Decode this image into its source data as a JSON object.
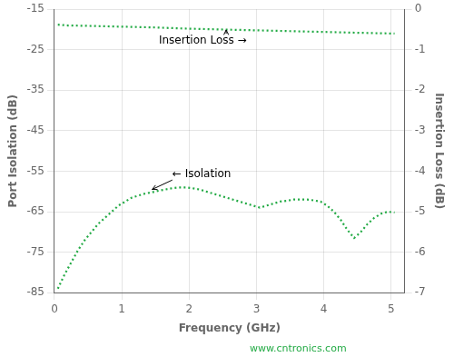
{
  "chart_data": {
    "type": "line",
    "xlabel": "Frequency (GHz)",
    "ylabel": "Port Isolation (dB)",
    "y2label": "Insertion Loss (dB)",
    "series": [
      {
        "x": [
          0.05,
          0.15,
          0.25,
          0.35,
          0.45,
          0.55,
          0.65,
          0.75,
          0.85,
          0.95,
          1.05,
          1.15,
          1.25,
          1.35,
          1.45,
          1.55,
          1.65,
          1.75,
          1.85,
          1.95,
          2.05,
          2.15,
          2.25,
          2.35,
          2.45,
          2.55,
          2.65,
          2.75,
          2.85,
          2.95,
          3.05,
          3.15,
          3.25,
          3.35,
          3.45,
          3.55,
          3.65,
          3.75,
          3.85,
          3.95,
          4.05,
          4.15,
          4.25,
          4.35,
          4.45,
          4.55,
          4.65,
          4.75,
          4.85,
          4.95,
          5.05
        ],
        "values": [
          -84.0,
          -80.5,
          -77.5,
          -74.5,
          -72.0,
          -70.0,
          -68.0,
          -66.5,
          -65.0,
          -63.5,
          -62.5,
          -61.5,
          -61.0,
          -60.5,
          -60.2,
          -59.8,
          -59.5,
          -59.2,
          -59.0,
          -59.0,
          -59.2,
          -59.5,
          -60.0,
          -60.5,
          -61.0,
          -61.5,
          -62.0,
          -62.5,
          -63.0,
          -63.5,
          -64.0,
          -63.5,
          -63.0,
          -62.5,
          -62.3,
          -62.0,
          -62.0,
          -62.0,
          -62.2,
          -62.5,
          -63.5,
          -65.0,
          -67.0,
          -69.5,
          -71.5,
          -70.0,
          -68.0,
          -66.5,
          -65.5,
          -65.0,
          -65.2
        ],
        "color": "#22aa44",
        "line_style": "dotted"
      },
      {
        "x": [
          0.05,
          0.2,
          0.5,
          1.0,
          1.5,
          2.0,
          2.5,
          3.0,
          3.5,
          4.0,
          4.5,
          5.05
        ],
        "values": [
          -18.8,
          -19.0,
          -19.1,
          -19.3,
          -19.5,
          -19.8,
          -20.0,
          -20.2,
          -20.4,
          -20.6,
          -20.8,
          -21.0
        ],
        "color": "#22aa44",
        "line_style": "dotted"
      }
    ],
    "xlim": [
      0.0,
      5.2
    ],
    "xticks": [
      0.0,
      1.0,
      2.0,
      3.0,
      4.0,
      5.0
    ],
    "ylim": [
      -85,
      -15
    ],
    "yticks": [
      -85,
      -75,
      -65,
      -55,
      -45,
      -35,
      -25,
      -15
    ],
    "y2lim": [
      -7,
      0
    ],
    "y2ticks": [
      -7,
      -6,
      -5,
      -4,
      -3,
      -2,
      -1,
      0
    ],
    "grid": true,
    "annotations": [
      {
        "text": "Insertion Loss →",
        "x": 1.55,
        "y": -23.5,
        "arrow_x": 2.55,
        "arrow_y": -20.1
      },
      {
        "text": "← Isolation",
        "x": 1.75,
        "y": -56.5,
        "arrow_x": 1.45,
        "arrow_y": -59.5
      }
    ],
    "watermark": {
      "text": "www.cntronics.com",
      "color": "#22aa44"
    }
  }
}
